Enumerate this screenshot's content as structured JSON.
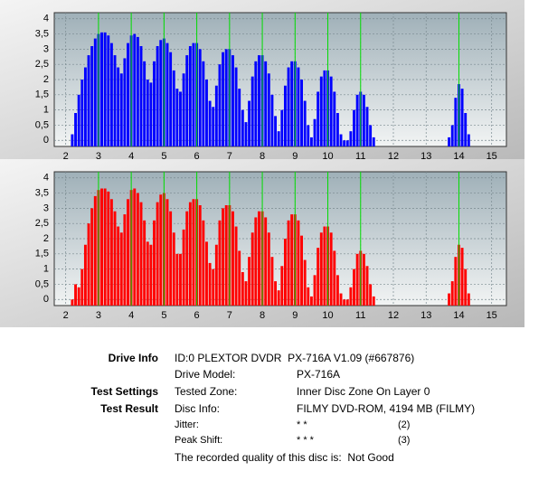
{
  "chart_data": [
    {
      "type": "bar",
      "color": "#0000ff",
      "grid": true,
      "marker_color": "#00dd00",
      "xlim": [
        1.65,
        15.45
      ],
      "ylim": [
        -0.2,
        4.2
      ],
      "xticks": [
        2,
        3,
        4,
        5,
        6,
        7,
        8,
        9,
        10,
        11,
        12,
        13,
        14,
        15
      ],
      "yticks": [
        0,
        {
          "value": 0.5,
          "label": "0,5"
        },
        1,
        {
          "value": 1.5,
          "label": "1,5"
        },
        2,
        {
          "value": 2.5,
          "label": "2,5"
        },
        3,
        {
          "value": 3.5,
          "label": "3,5"
        },
        4
      ],
      "markers": [
        3,
        4,
        5,
        6,
        7,
        8,
        9,
        10,
        11,
        14
      ],
      "x": [
        2.2,
        2.3,
        2.4,
        2.5,
        2.6,
        2.7,
        2.8,
        2.9,
        3.0,
        3.1,
        3.2,
        3.3,
        3.4,
        3.5,
        3.6,
        3.7,
        3.8,
        3.9,
        4.0,
        4.1,
        4.2,
        4.3,
        4.4,
        4.5,
        4.6,
        4.7,
        4.8,
        4.9,
        5.0,
        5.1,
        5.2,
        5.3,
        5.4,
        5.5,
        5.6,
        5.7,
        5.8,
        5.9,
        6.0,
        6.1,
        6.2,
        6.3,
        6.4,
        6.5,
        6.6,
        6.7,
        6.8,
        6.9,
        7.0,
        7.1,
        7.2,
        7.3,
        7.4,
        7.5,
        7.6,
        7.7,
        7.8,
        7.9,
        8.0,
        8.1,
        8.2,
        8.3,
        8.4,
        8.5,
        8.6,
        8.7,
        8.8,
        8.9,
        9.0,
        9.1,
        9.2,
        9.3,
        9.4,
        9.5,
        9.6,
        9.7,
        9.8,
        9.9,
        10.0,
        10.1,
        10.2,
        10.3,
        10.4,
        10.5,
        10.6,
        10.7,
        10.8,
        10.9,
        11.0,
        11.1,
        11.2,
        11.3,
        11.4,
        13.7,
        13.8,
        13.9,
        14.0,
        14.1,
        14.2,
        14.3
      ],
      "values": [
        0.2,
        0.9,
        1.5,
        2.0,
        2.4,
        2.8,
        3.1,
        3.35,
        3.5,
        3.55,
        3.55,
        3.45,
        3.2,
        2.8,
        2.4,
        2.2,
        2.7,
        3.2,
        3.45,
        3.5,
        3.4,
        3.1,
        2.6,
        2.0,
        1.9,
        2.6,
        3.1,
        3.3,
        3.35,
        3.2,
        2.9,
        2.3,
        1.7,
        1.6,
        2.2,
        2.8,
        3.1,
        3.2,
        3.2,
        3.0,
        2.6,
        2.0,
        1.3,
        1.1,
        1.8,
        2.5,
        2.9,
        3.0,
        3.0,
        2.8,
        2.4,
        1.7,
        1.0,
        0.6,
        1.3,
        2.1,
        2.6,
        2.8,
        2.8,
        2.6,
        2.2,
        1.5,
        0.8,
        0.3,
        1.0,
        1.8,
        2.4,
        2.6,
        2.6,
        2.4,
        2.0,
        1.3,
        0.5,
        0.1,
        0.7,
        1.6,
        2.1,
        2.3,
        2.3,
        2.1,
        1.6,
        0.9,
        0.2,
        0,
        0,
        0.3,
        1.0,
        1.5,
        1.6,
        1.5,
        1.1,
        0.5,
        0.1,
        0.1,
        0.5,
        1.4,
        1.85,
        1.7,
        0.9,
        0.2
      ]
    },
    {
      "type": "bar",
      "color": "#ff0000",
      "grid": true,
      "marker_color": "#00dd00",
      "xlim": [
        1.65,
        15.45
      ],
      "ylim": [
        -0.2,
        4.2
      ],
      "xticks": [
        2,
        3,
        4,
        5,
        6,
        7,
        8,
        9,
        10,
        11,
        12,
        13,
        14,
        15
      ],
      "yticks": [
        0,
        {
          "value": 0.5,
          "label": "0,5"
        },
        1,
        {
          "value": 1.5,
          "label": "1,5"
        },
        2,
        {
          "value": 2.5,
          "label": "2,5"
        },
        3,
        {
          "value": 3.5,
          "label": "3,5"
        },
        4
      ],
      "markers": [
        3,
        4,
        5,
        6,
        7,
        8,
        9,
        10,
        11,
        14
      ],
      "x": [
        2.2,
        2.3,
        2.4,
        2.5,
        2.6,
        2.7,
        2.8,
        2.9,
        3.0,
        3.1,
        3.2,
        3.3,
        3.4,
        3.5,
        3.6,
        3.7,
        3.8,
        3.9,
        4.0,
        4.1,
        4.2,
        4.3,
        4.4,
        4.5,
        4.6,
        4.7,
        4.8,
        4.9,
        5.0,
        5.1,
        5.2,
        5.3,
        5.4,
        5.5,
        5.6,
        5.7,
        5.8,
        5.9,
        6.0,
        6.1,
        6.2,
        6.3,
        6.4,
        6.5,
        6.6,
        6.7,
        6.8,
        6.9,
        7.0,
        7.1,
        7.2,
        7.3,
        7.4,
        7.5,
        7.6,
        7.7,
        7.8,
        7.9,
        8.0,
        8.1,
        8.2,
        8.3,
        8.4,
        8.5,
        8.6,
        8.7,
        8.8,
        8.9,
        9.0,
        9.1,
        9.2,
        9.3,
        9.4,
        9.5,
        9.6,
        9.7,
        9.8,
        9.9,
        10.0,
        10.1,
        10.2,
        10.3,
        10.4,
        10.5,
        10.6,
        10.7,
        10.8,
        10.9,
        11.0,
        11.1,
        11.2,
        11.3,
        11.4,
        13.7,
        13.8,
        13.9,
        14.0,
        14.1,
        14.2,
        14.3
      ],
      "values": [
        0,
        0.5,
        0.4,
        1.0,
        1.8,
        2.5,
        3.0,
        3.4,
        3.6,
        3.65,
        3.65,
        3.55,
        3.3,
        2.9,
        2.4,
        2.2,
        2.8,
        3.3,
        3.6,
        3.65,
        3.5,
        3.2,
        2.6,
        1.9,
        1.8,
        2.6,
        3.2,
        3.45,
        3.5,
        3.3,
        2.9,
        2.2,
        1.5,
        1.5,
        2.3,
        2.9,
        3.2,
        3.3,
        3.3,
        3.1,
        2.6,
        1.9,
        1.2,
        1.0,
        1.8,
        2.6,
        3.0,
        3.1,
        3.1,
        2.9,
        2.4,
        1.6,
        0.9,
        0.6,
        1.4,
        2.2,
        2.7,
        2.9,
        2.9,
        2.7,
        2.2,
        1.4,
        0.6,
        0.3,
        1.1,
        2.0,
        2.6,
        2.8,
        2.8,
        2.6,
        2.1,
        1.3,
        0.4,
        0.1,
        0.8,
        1.7,
        2.2,
        2.4,
        2.4,
        2.2,
        1.6,
        0.8,
        0.2,
        0,
        0,
        0.4,
        1.0,
        1.5,
        1.6,
        1.5,
        1.1,
        0.5,
        0.1,
        0.2,
        0.6,
        1.4,
        1.8,
        1.7,
        1.0,
        0.2
      ]
    }
  ],
  "drive_info": {
    "heading": "Drive Info",
    "id": "ID:0 PLEXTOR DVDR  PX-716A V1.09 (#667876)",
    "model_label": "Drive Model:",
    "model": "PX-716A"
  },
  "test_settings": {
    "heading": "Test Settings",
    "zone_label": "Tested Zone:",
    "zone": "Inner Disc Zone On Layer 0"
  },
  "test_result": {
    "heading": "Test Result",
    "disc_label": "Disc Info:",
    "disc": "FILMY DVD-ROM, 4194 MB (FILMY)",
    "jitter_label": "Jitter:",
    "jitter_stars": "* *",
    "jitter_score": "(2)",
    "peak_label": "Peak Shift:",
    "peak_stars": "* * *",
    "peak_score": "(3)",
    "quality": "The recorded quality of this disc is:  Not Good"
  }
}
